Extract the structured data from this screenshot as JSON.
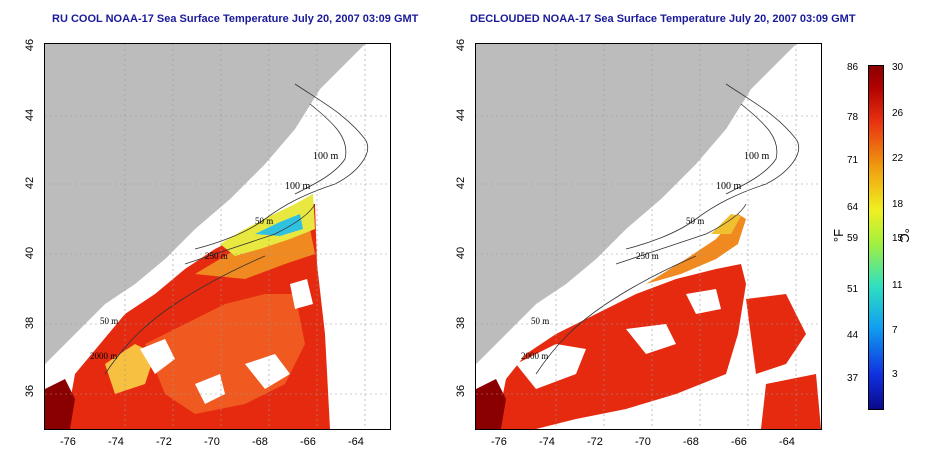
{
  "titles": {
    "left": "RU COOL NOAA-17 Sea Surface Temperature July 20, 2007 03:09 GMT",
    "right": "DECLOUDED NOAA-17 Sea Surface Temperature July 20, 2007 03:09 GMT"
  },
  "axes": {
    "lat_ticks": [
      "36",
      "38",
      "40",
      "42",
      "44",
      "46"
    ],
    "lon_ticks": [
      "-76",
      "-74",
      "-72",
      "-70",
      "-68",
      "-66",
      "-64"
    ]
  },
  "contours": {
    "labels": [
      "100 m",
      "100 m",
      "50 m",
      "250 m",
      "50 m",
      "2000 m"
    ]
  },
  "colorbar": {
    "fahrenheit_ticks": [
      "86",
      "78",
      "71",
      "64",
      "59",
      "51",
      "44",
      "37"
    ],
    "celsius_ticks": [
      "30",
      "26",
      "22",
      "18",
      "15",
      "11",
      "7",
      "3"
    ],
    "unit_f": "°F",
    "unit_c": "°C"
  },
  "colors": {
    "land": "#bcbcbc",
    "cloud": "#ffffff",
    "hot": "#e62a10",
    "warm": "#f08a20",
    "cool": "#30c0e0",
    "title": "#1a1a9a"
  }
}
